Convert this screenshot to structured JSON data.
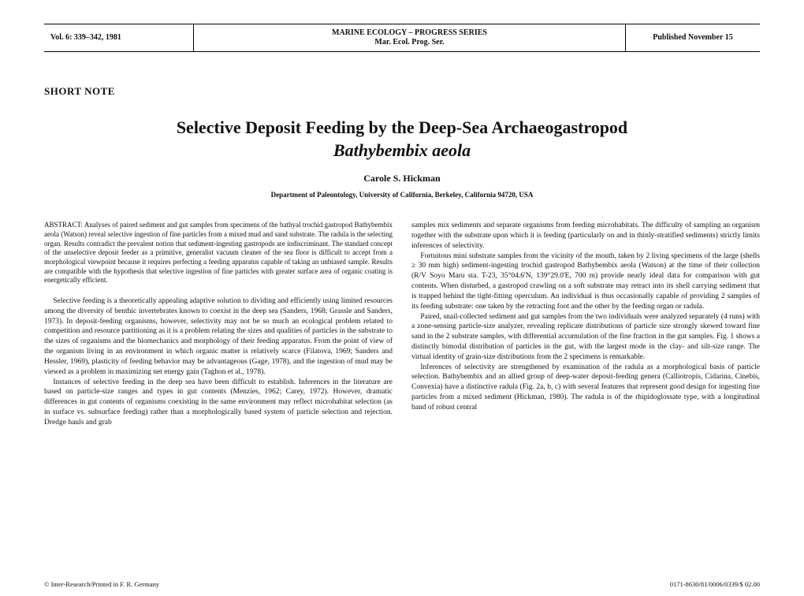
{
  "header": {
    "left": "Vol. 6: 339–342, 1981",
    "center_line1": "MARINE  ECOLOGY  –  PROGRESS  SERIES",
    "center_line2": "Mar. Ecol. Prog. Ser.",
    "right": "Published November 15"
  },
  "short_note": "SHORT NOTE",
  "title_line1": "Selective Deposit Feeding by the Deep-Sea Archaeogastropod",
  "title_line2_italic": "Bathybembix aeola",
  "author": "Carole S. Hickman",
  "affiliation": "Department of Paleontology, University of California, Berkeley, California 94720, USA",
  "abstract_label": "ABSTRACT:",
  "abstract_body": " Analyses of paired sediment and gut samples from specimens of the bathyal trochid gastropod Bathybembix aeola (Watson) reveal selective ingestion of fine particles from a mixed mud and sand substrate. The radula is the selecting organ. Results contradict the prevalent notion that sediment-ingesting gastropods are indiscriminant. The standard concept of the unselective deposit feeder as a primitive, generalist vacuum cleaner of the sea floor is difficult to accept from a morphological viewpoint because it requires perfecting a feeding apparatus capable of taking an unbiased sample. Results are compatible with the hypothesis that selective ingestion of fine particles with greater surface area of organic coating is energetically efficient.",
  "body": {
    "p1": "Selective feeding is a theoretically appealing adaptive solution to dividing and efficiently using limited resources among the diversity of benthic invertebrates known to coexist in the deep sea (Sanders, 1968; Grassle and Sanders, 1973). In deposit-feeding organisms, however, selectivity may not be so much an ecological problem related to competition and resource partitioning as it is a problem relating the sizes and qualities of particles in the substrate to the sizes of organisms and the biomechanics and morphology of their feeding apparatus. From the point of view of the organism living in an environment in which organic matter is relatively scarce (Filatova, 1969; Sanders and Hessler, 1969), plasticity of feeding behavior may be advantageous (Gage, 1978), and the ingestion of mud may be viewed as a problem in maximizing net energy gain (Taghon et al., 1978).",
    "p2": "Instances of selective feeding in the deep sea have been difficult to establish. Inferences in the literature are based on particle-size ranges and types in gut contents (Menzies, 1962; Carey, 1972). However, dramatic differences in gut contents of organisms coexisting in the same environment may reflect microhabitat selection (as in surface vs. subsurface feeding) rather than a morphologically based system of particle selection and rejection. Dredge hauls and grab",
    "p3": "samples mix sediments and separate organisms from feeding microhabitats. The difficulty of sampling an organism together with the substrate upon which it is feeding (particularly on and in thinly-stratified sediments) strictly limits inferences of selectivity.",
    "p4": "Fortuitous mini substrate samples from the vicinity of the mouth, taken by 2 living specimens of the large (shells ≥ 30 mm high) sediment-ingesting trochid gastropod Bathybembix aeola (Watson) at the time of their collection (R/V Soyo Maru sta. T-23, 35°04.6'N, 139°29.0'E, 700 m) provide nearly ideal data for comparison with gut contents. When disturbed, a gastropod crawling on a soft substrate may retract into its shell carrying sediment that is trapped behind the tight-fitting operculum. An individual is thus occasionally capable of providing 2 samples of its feeding substrate: one taken by the retracting foot and the other by the feeding organ or radula.",
    "p5": "Paired, snail-collected sediment and gut samples from the two individuals were analyzed separately (4 runs) with a zone-sensing particle-size analyzer, revealing replicate distributions of particle size strongly skewed toward fine sand in the 2 substrate samples, with differential accumulation of the fine fraction in the gut samples. Fig. 1 shows a distinctly bimodal distribution of particles in the gut, with the largest mode in the clay- and silt-size range. The virtual identity of grain-size distributions from the 2 specimens is remarkable.",
    "p6": "Inferences of selectivity are strengthened by examination of the radula as a morphological basis of particle selection. Bathybembix and an allied group of deep-water deposit-feeding genera (Calliotropis, Cidarina, Cinebis, Convexia) have a distinctive radula (Fig. 2a, b, c) with several features that represent good design for ingesting fine particles from a mixed sediment (Hickman, 1980). The radula is of the rhipidoglossate type, with a longitudinal band of robust central"
  },
  "footer": {
    "left": "© Inter-Research/Printed in F. R. Germany",
    "right": "0171-8630/81/0006/0339/$ 02.00"
  }
}
